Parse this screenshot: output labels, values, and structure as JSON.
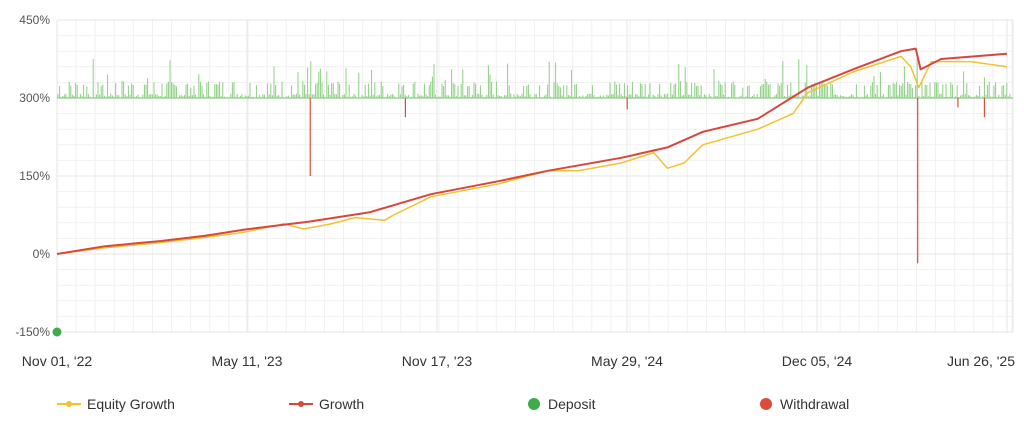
{
  "colors": {
    "equity": "#f2c230",
    "growth": "#d9473b",
    "deposit": "#3dac4a",
    "withdrawal": "#dd4b39",
    "volume": "#8ccf83",
    "grid": "#e6e6e6"
  },
  "legend": {
    "equity_label": "Equity Growth",
    "growth_label": "Growth",
    "deposit_label": "Deposit",
    "withdrawal_label": "Withdrawal"
  },
  "chart_data": {
    "type": "line",
    "x_axis": {
      "type": "date",
      "start": "2022-11-01",
      "end": "2025-06-26",
      "tick_labels": [
        "Nov 01, '22",
        "May 11, '23",
        "Nov 17, '23",
        "May 29, '24",
        "Dec 05, '24",
        "Jun 26, '25"
      ]
    },
    "y_axis": {
      "ylim": [
        -150,
        450
      ],
      "tick_labels": [
        "450%",
        "300%",
        "150%",
        "0%",
        "-150%"
      ]
    },
    "grid": true,
    "legend_placement": "bottom",
    "series": [
      {
        "name": "Growth",
        "points": [
          [
            "2022-11-01",
            0
          ],
          [
            "2022-12-20",
            15
          ],
          [
            "2023-02-15",
            25
          ],
          [
            "2023-04-01",
            35
          ],
          [
            "2023-05-11",
            47
          ],
          [
            "2023-07-15",
            62
          ],
          [
            "2023-09-15",
            80
          ],
          [
            "2023-11-17",
            115
          ],
          [
            "2024-01-25",
            140
          ],
          [
            "2024-03-15",
            160
          ],
          [
            "2024-05-29",
            185
          ],
          [
            "2024-07-15",
            205
          ],
          [
            "2024-08-20",
            235
          ],
          [
            "2024-10-15",
            260
          ],
          [
            "2024-12-05",
            320
          ],
          [
            "2025-01-20",
            355
          ],
          [
            "2025-03-10",
            390
          ],
          [
            "2025-03-25",
            395
          ],
          [
            "2025-03-30",
            355
          ],
          [
            "2025-04-20",
            375
          ],
          [
            "2025-06-26",
            385
          ]
        ]
      },
      {
        "name": "Equity Growth",
        "points": [
          [
            "2022-11-01",
            0
          ],
          [
            "2022-12-20",
            12
          ],
          [
            "2023-02-15",
            22
          ],
          [
            "2023-04-01",
            32
          ],
          [
            "2023-05-11",
            42
          ],
          [
            "2023-06-20",
            58
          ],
          [
            "2023-07-10",
            48
          ],
          [
            "2023-08-05",
            57
          ],
          [
            "2023-09-01",
            70
          ],
          [
            "2023-10-01",
            65
          ],
          [
            "2023-10-10",
            75
          ],
          [
            "2023-11-17",
            110
          ],
          [
            "2024-01-25",
            135
          ],
          [
            "2024-03-15",
            160
          ],
          [
            "2024-04-15",
            160
          ],
          [
            "2024-05-29",
            175
          ],
          [
            "2024-07-01",
            195
          ],
          [
            "2024-07-15",
            165
          ],
          [
            "2024-08-01",
            175
          ],
          [
            "2024-08-20",
            210
          ],
          [
            "2024-10-15",
            240
          ],
          [
            "2024-11-20",
            270
          ],
          [
            "2024-12-05",
            310
          ],
          [
            "2025-01-20",
            350
          ],
          [
            "2025-03-10",
            380
          ],
          [
            "2025-03-20",
            360
          ],
          [
            "2025-03-28",
            320
          ],
          [
            "2025-04-10",
            370
          ],
          [
            "2025-05-20",
            370
          ],
          [
            "2025-06-26",
            360
          ]
        ]
      },
      {
        "name": "Deposit",
        "points": [
          [
            "2022-11-01",
            -150
          ]
        ]
      },
      {
        "name": "Withdrawal",
        "points": [
          [
            "2023-07-17",
            150
          ],
          [
            "2023-10-22",
            263
          ],
          [
            "2024-06-04",
            278
          ],
          [
            "2025-03-27",
            -18
          ],
          [
            "2025-05-07",
            282
          ],
          [
            "2025-06-03",
            263
          ]
        ]
      }
    ]
  }
}
